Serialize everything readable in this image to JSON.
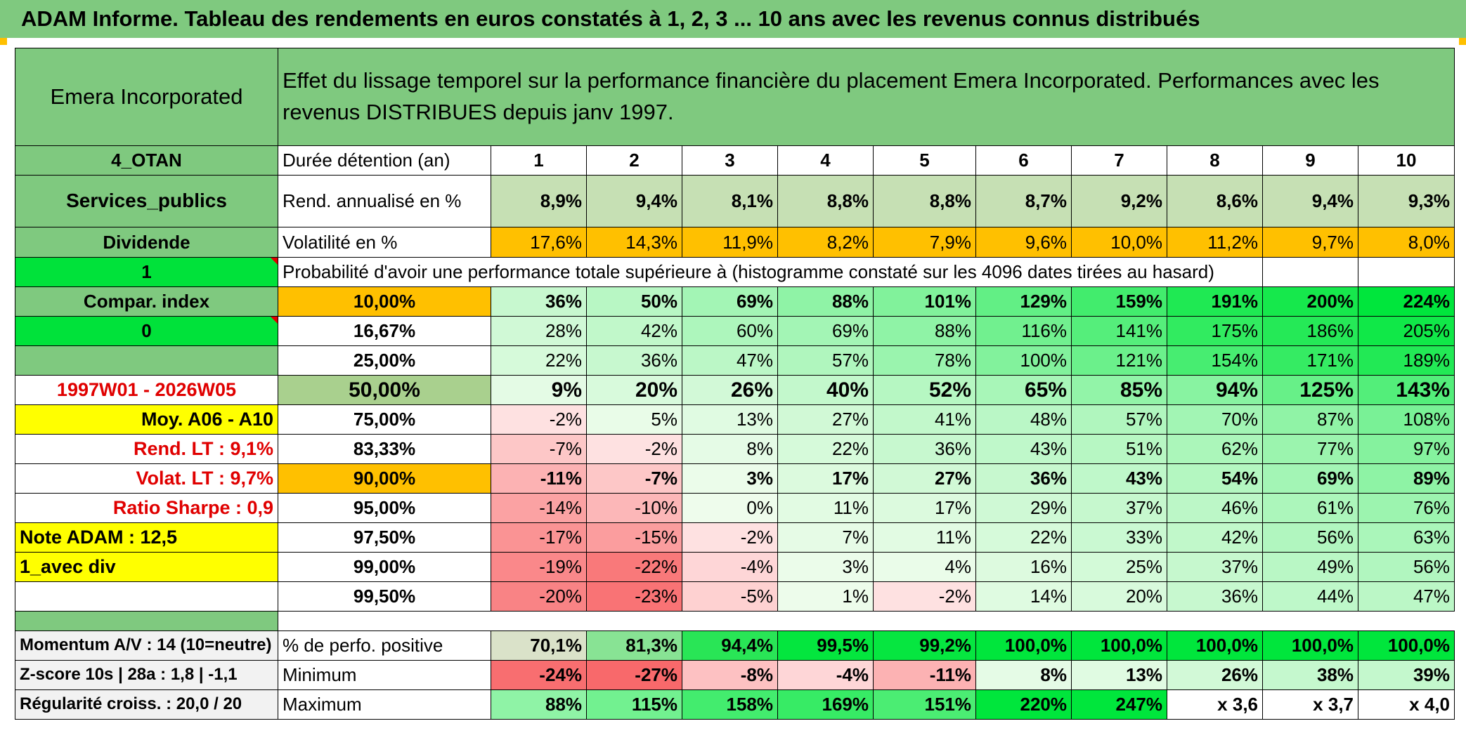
{
  "title": "ADAM Informe. Tableau des rendements en euros constatés à 1, 2, 3 ... 10 ans avec les revenus connus distribués",
  "left": {
    "fund_name": "Emera Incorporated",
    "zone": "4_OTAN",
    "sector": "Services_publics",
    "dividend_label": "Dividende",
    "input1": "1",
    "compar_label": "Compar. index",
    "input0": "0",
    "period": "1997W01 - 2026W05",
    "moy": "Moy. A06 - A10",
    "rend_lt": "Rend. LT :   9,1%",
    "volat_lt": "Volat. LT :   9,7%",
    "sharpe": "Ratio Sharpe :   0,9",
    "note": "Note ADAM : 12,5",
    "avec_div": "1_avec div",
    "momentum": "Momentum A/V : 14 (10=neutre)",
    "zscore": "Z-score 10s | 28a : 1,8 | -1,1",
    "regularite": "Régularité croiss. : 20,0 / 20"
  },
  "header_text": "Effet du lissage temporel sur la performance financière du placement Emera Incorporated. Performances avec les revenus DISTRIBUES depuis janv 1997.",
  "row_labels": {
    "duree": "Durée détention (an)",
    "rend": "Rend. annualisé en %",
    "vol": "Volatilité en %",
    "prob": "Probabilité d'avoir une performance totale supérieure à (histogramme constaté sur les 4096 dates tirées au hasard)",
    "pos": "% de perfo. positive",
    "min": "Minimum",
    "max": "Maximum"
  },
  "years": [
    "1",
    "2",
    "3",
    "4",
    "5",
    "6",
    "7",
    "8",
    "9",
    "10"
  ],
  "rend": [
    "8,9%",
    "9,4%",
    "8,1%",
    "8,8%",
    "8,8%",
    "8,7%",
    "9,2%",
    "8,6%",
    "9,4%",
    "9,3%"
  ],
  "vol": [
    "17,6%",
    "14,3%",
    "11,9%",
    "8,2%",
    "7,9%",
    "9,6%",
    "10,0%",
    "11,2%",
    "9,7%",
    "8,0%"
  ],
  "pct": [
    {
      "label": "10,00%",
      "vals": [
        "36%",
        "50%",
        "69%",
        "88%",
        "101%",
        "129%",
        "159%",
        "191%",
        "200%",
        "224%"
      ]
    },
    {
      "label": "16,67%",
      "vals": [
        "28%",
        "42%",
        "60%",
        "69%",
        "88%",
        "116%",
        "141%",
        "175%",
        "186%",
        "205%"
      ]
    },
    {
      "label": "25,00%",
      "vals": [
        "22%",
        "36%",
        "47%",
        "57%",
        "78%",
        "100%",
        "121%",
        "154%",
        "171%",
        "189%"
      ]
    },
    {
      "label": "50,00%",
      "vals": [
        "9%",
        "20%",
        "26%",
        "40%",
        "52%",
        "65%",
        "85%",
        "94%",
        "125%",
        "143%"
      ]
    },
    {
      "label": "75,00%",
      "vals": [
        "-2%",
        "5%",
        "13%",
        "27%",
        "41%",
        "48%",
        "57%",
        "70%",
        "87%",
        "108%"
      ]
    },
    {
      "label": "83,33%",
      "vals": [
        "-7%",
        "-2%",
        "8%",
        "22%",
        "36%",
        "43%",
        "51%",
        "62%",
        "77%",
        "97%"
      ]
    },
    {
      "label": "90,00%",
      "vals": [
        "-11%",
        "-7%",
        "3%",
        "17%",
        "27%",
        "36%",
        "43%",
        "54%",
        "69%",
        "89%"
      ]
    },
    {
      "label": "95,00%",
      "vals": [
        "-14%",
        "-10%",
        "0%",
        "11%",
        "17%",
        "29%",
        "37%",
        "46%",
        "61%",
        "76%"
      ]
    },
    {
      "label": "97,50%",
      "vals": [
        "-17%",
        "-15%",
        "-2%",
        "7%",
        "11%",
        "22%",
        "33%",
        "42%",
        "56%",
        "63%"
      ]
    },
    {
      "label": "99,00%",
      "vals": [
        "-19%",
        "-22%",
        "-4%",
        "3%",
        "4%",
        "16%",
        "25%",
        "37%",
        "49%",
        "56%"
      ]
    },
    {
      "label": "99,50%",
      "vals": [
        "-20%",
        "-23%",
        "-5%",
        "1%",
        "-2%",
        "14%",
        "20%",
        "36%",
        "44%",
        "47%"
      ]
    }
  ],
  "pos": [
    "70,1%",
    "81,3%",
    "94,4%",
    "99,5%",
    "99,2%",
    "100,0%",
    "100,0%",
    "100,0%",
    "100,0%",
    "100,0%"
  ],
  "min": [
    "-24%",
    "-27%",
    "-8%",
    "-4%",
    "-11%",
    "8%",
    "13%",
    "26%",
    "38%",
    "39%"
  ],
  "max": [
    "88%",
    "115%",
    "158%",
    "169%",
    "151%",
    "220%",
    "247%",
    "x 3,6",
    "x 3,7",
    "x 4,0"
  ]
}
